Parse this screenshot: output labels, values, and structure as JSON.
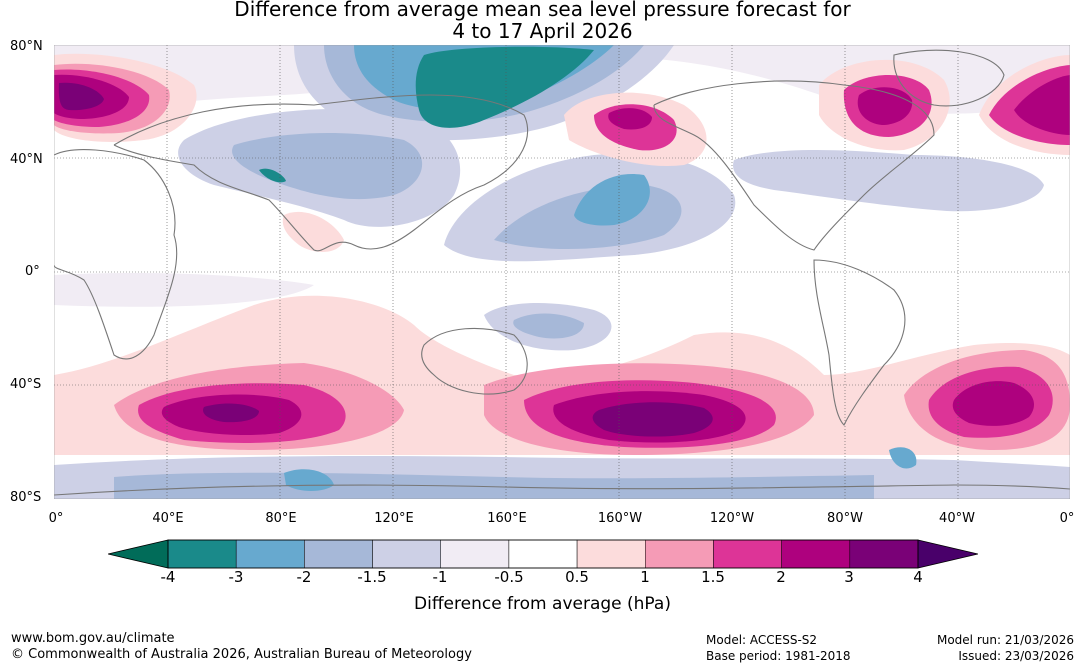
{
  "title_line1": "Difference from average mean sea level pressure forecast for",
  "title_line2": "4 to 17 April 2026",
  "lat_labels": [
    "80°N",
    "40°N",
    "0°",
    "40°S",
    "80°S"
  ],
  "lon_labels": [
    "0°",
    "40°E",
    "80°E",
    "120°E",
    "160°E",
    "160°W",
    "120°W",
    "80°W",
    "40°W",
    "0°"
  ],
  "colorbar": {
    "label": "Difference from average (hPa)",
    "ticks": [
      "-4",
      "-3",
      "-2",
      "-1.5",
      "-1",
      "-0.5",
      "0.5",
      "1",
      "1.5",
      "2",
      "3",
      "4"
    ],
    "colors": [
      "#1a8a8a",
      "#67a9cf",
      "#a6b8d8",
      "#cdd0e6",
      "#f1ecf4",
      "#ffffff",
      "#fcdcdc",
      "#f59bb6",
      "#dd3497",
      "#ae017e",
      "#7a0177"
    ],
    "under_color": "#016c59",
    "over_color": "#49006a"
  },
  "footer": {
    "website": "www.bom.gov.au/climate",
    "copyright": "© Commonwealth of Australia 2026, Australian Bureau of Meteorology",
    "model": "Model: ACCESS-S2",
    "base_period": "Base period: 1981-2018",
    "model_run": "Model run: 21/03/2026",
    "issued": "Issued: 23/03/2026"
  }
}
